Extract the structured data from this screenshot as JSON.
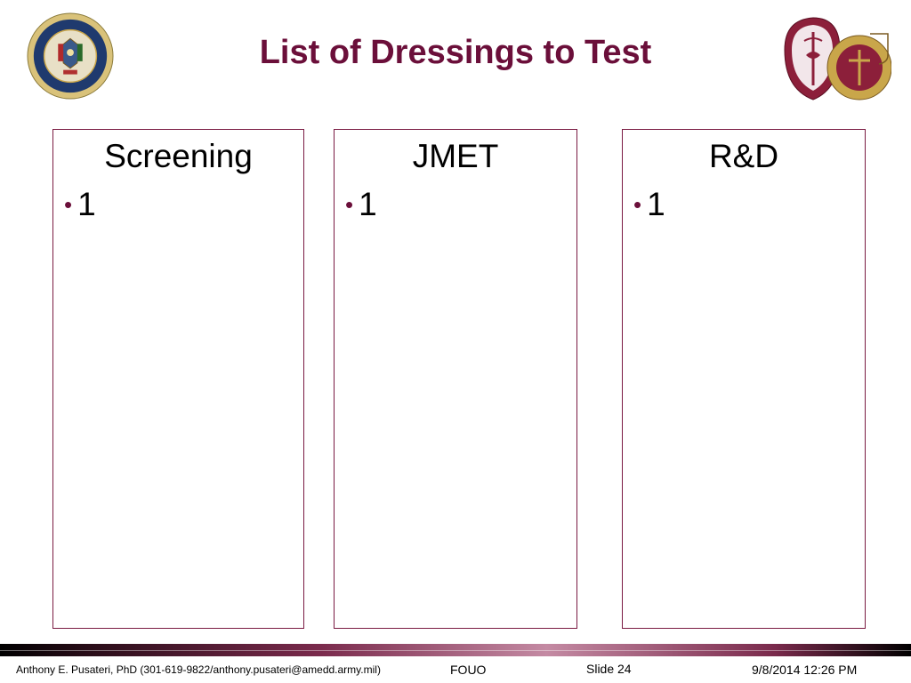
{
  "slide": {
    "title": "List of Dressings to Test",
    "columns": [
      {
        "heading": "Screening",
        "items": [
          "1"
        ]
      },
      {
        "heading": "JMET",
        "items": [
          "1"
        ]
      },
      {
        "heading": "R&D",
        "items": [
          "1"
        ]
      }
    ]
  },
  "footer": {
    "author": "Anthony E. Pusateri, PhD (301-619-9822/anthony.pusateri@amedd.army.mil)",
    "classification": "FOUO",
    "slide_number": "Slide 24",
    "datetime": "9/8/2014 12:26 PM"
  },
  "logos": {
    "left": "department-of-the-army-seal",
    "right": "army-medical-command-insignia"
  },
  "colors": {
    "title": "#6b0f3a",
    "box_border": "#7a1a42",
    "bullet": "#6b0f3a"
  }
}
